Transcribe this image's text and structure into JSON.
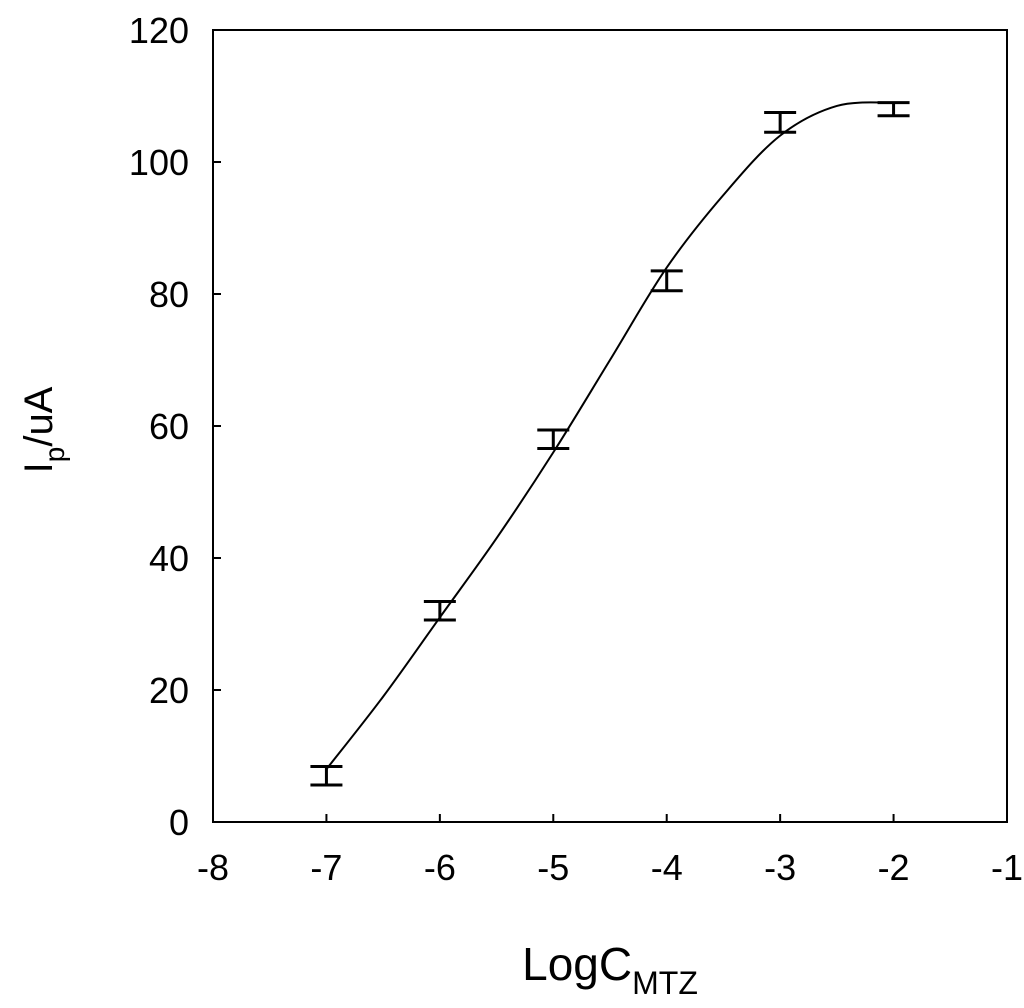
{
  "chart_data": {
    "type": "scatter",
    "xlabel": {
      "text": "LogC",
      "subscript": "MTZ"
    },
    "ylabel": {
      "text": "I",
      "subscript": "p",
      "suffix": "/uA"
    },
    "xlim": [
      -8,
      -1
    ],
    "xticks": [
      -8,
      -7,
      -6,
      -5,
      -4,
      -3,
      -2,
      -1
    ],
    "ylim": [
      0,
      120
    ],
    "yticks": [
      0,
      20,
      40,
      60,
      80,
      100,
      120
    ],
    "color": "#000000",
    "series": [
      {
        "x": [
          -7,
          -6,
          -5,
          -4,
          -3,
          -2
        ],
        "values": [
          7,
          32,
          58,
          82,
          106,
          108
        ],
        "errors": [
          1.4,
          1.4,
          1.4,
          1.5,
          1.5,
          1
        ]
      },
      {
        "x": [
          -7,
          -6.5,
          -6,
          -5.5,
          -5,
          -4.5,
          -4,
          -3.5,
          -3,
          -2.5,
          -2
        ],
        "values": [
          8,
          19,
          31,
          43,
          56,
          70,
          84,
          95,
          104,
          108.5,
          109
        ]
      }
    ]
  }
}
